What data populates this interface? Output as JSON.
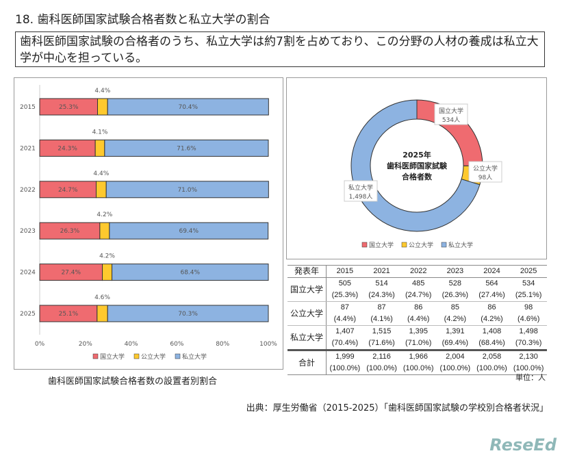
{
  "title": "18. 歯科医師国家試験合格者数と私立大学の割合",
  "summary": "歯科医師国家試験の合格者のうち、私立大学は約7割を占めており、この分野の人材の養成は私立大学が中心を担っている。",
  "caption": "歯科医師国家試験合格者数の設置者別割合",
  "source": "出典：厚生労働省（2015-2025）「歯科医師国家試験の学校別合格者状況」",
  "unit": "単位：人",
  "logo": "ReseEd",
  "colors": {
    "national": "#ef6b70",
    "public": "#fec92e",
    "private": "#8db3e1"
  },
  "chart_data": [
    {
      "type": "bar",
      "orientation": "horizontal",
      "stacked": true,
      "categories": [
        "2015",
        "2021",
        "2022",
        "2023",
        "2024",
        "2025"
      ],
      "series": [
        {
          "name": "国立大学",
          "values": [
            25.3,
            24.3,
            24.7,
            26.3,
            27.4,
            25.1
          ],
          "labels": [
            "25.3%",
            "24.3%",
            "24.7%",
            "26.3%",
            "27.4%",
            "25.1%"
          ]
        },
        {
          "name": "公立大学",
          "values": [
            4.4,
            4.1,
            4.4,
            4.2,
            4.2,
            4.6
          ],
          "labels": [
            "4.4%",
            "4.1%",
            "4.4%",
            "4.2%",
            "4.2%",
            "4.6%"
          ]
        },
        {
          "name": "私立大学",
          "values": [
            70.4,
            71.6,
            71.0,
            69.4,
            68.4,
            70.3
          ],
          "labels": [
            "70.4%",
            "71.6%",
            "71.0%",
            "69.4%",
            "68.4%",
            "70.3%"
          ]
        }
      ],
      "xlim": [
        0,
        100
      ],
      "xticks": [
        "0%",
        "20%",
        "40%",
        "60%",
        "80%",
        "100%"
      ],
      "legend": "bottom"
    },
    {
      "type": "pie",
      "donut": true,
      "center_title": [
        "2025年",
        "歯科医師国家試験",
        "合格者数"
      ],
      "slices": [
        {
          "name": "国立大学",
          "value": 534,
          "label": "534人"
        },
        {
          "name": "公立大学",
          "value": 98,
          "label": "98人"
        },
        {
          "name": "私立大学",
          "value": 1498,
          "label": "1,498人"
        }
      ],
      "legend": "bottom"
    },
    {
      "type": "table",
      "header": [
        "発表年",
        "2015",
        "2021",
        "2022",
        "2023",
        "2024",
        "2025"
      ],
      "rows": [
        {
          "label": "国立大学",
          "counts": [
            "505",
            "514",
            "485",
            "528",
            "564",
            "534"
          ],
          "pcts": [
            "(25.3%)",
            "(24.3%)",
            "(24.7%)",
            "(26.3%)",
            "(27.4%)",
            "(25.1%)"
          ]
        },
        {
          "label": "公立大学",
          "counts": [
            "87",
            "87",
            "86",
            "85",
            "86",
            "98"
          ],
          "pcts": [
            "(4.4%)",
            "(4.1%)",
            "(4.4%)",
            "(4.2%)",
            "(4.2%)",
            "(4.6%)"
          ]
        },
        {
          "label": "私立大学",
          "counts": [
            "1,407",
            "1,515",
            "1,395",
            "1,391",
            "1,408",
            "1,498"
          ],
          "pcts": [
            "(70.4%)",
            "(71.6%)",
            "(71.0%)",
            "(69.4%)",
            "(68.4%)",
            "(70.3%)"
          ]
        },
        {
          "label": "合計",
          "counts": [
            "1,999",
            "2,116",
            "1,966",
            "2,004",
            "2,058",
            "2,130"
          ],
          "pcts": [
            "(100.0%)",
            "(100.0%)",
            "(100.0%)",
            "(100.0%)",
            "(100.0%)",
            "(100.0%)"
          ]
        }
      ]
    }
  ]
}
